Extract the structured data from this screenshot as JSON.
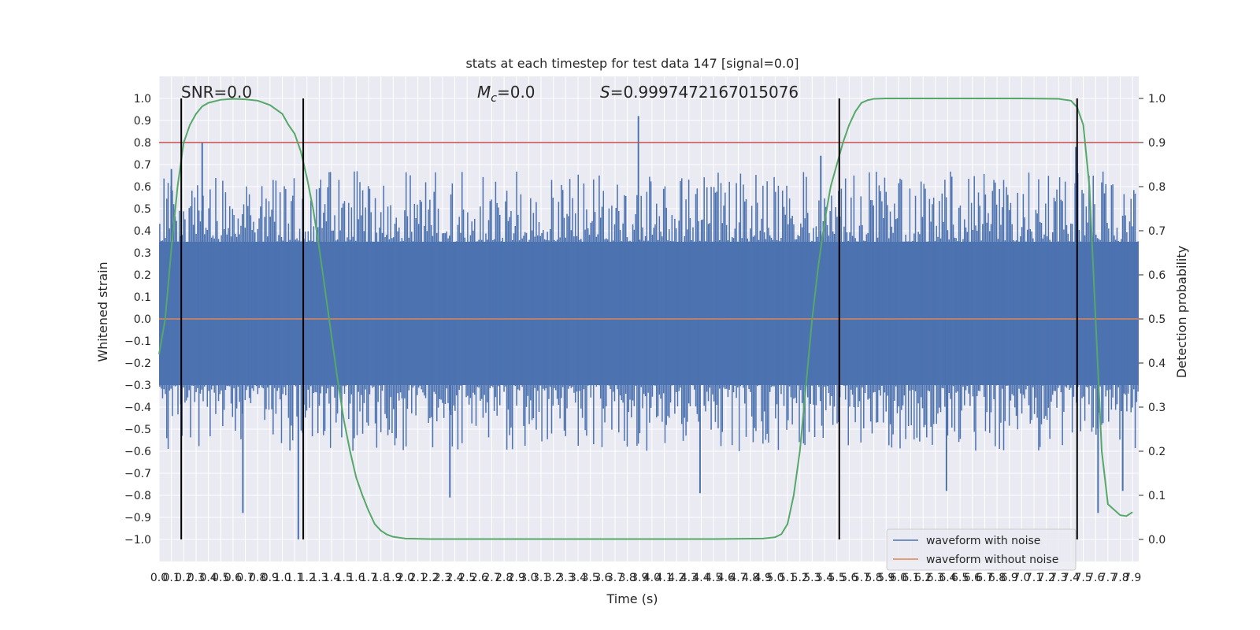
{
  "chart_data": {
    "type": "line",
    "title": "stats at each timestep for test data 147 [signal=0.0]",
    "xlabel": "Time (s)",
    "ylabel": "Whitened strain",
    "ylabel_right": "Detection probability",
    "xlim": [
      0.0,
      7.95
    ],
    "ylim": [
      -1.1,
      1.1
    ],
    "ylim_right": [
      -0.05,
      1.05
    ],
    "grid": true,
    "legend_position": "lower-right",
    "x_ticks": [
      "0.0",
      "0.1",
      "0.2",
      "0.3",
      "0.4",
      "0.5",
      "0.6",
      "0.7",
      "0.8",
      "0.9",
      "1.0",
      "1.1",
      "1.2",
      "1.3",
      "1.4",
      "1.5",
      "1.6",
      "1.7",
      "1.8",
      "1.9",
      "2.0",
      "2.1",
      "2.2",
      "2.3",
      "2.4",
      "2.5",
      "2.6",
      "2.7",
      "2.8",
      "2.9",
      "3.0",
      "3.1",
      "3.2",
      "3.3",
      "3.4",
      "3.5",
      "3.6",
      "3.7",
      "3.8",
      "3.9",
      "4.0",
      "4.1",
      "4.2",
      "4.3",
      "4.4",
      "4.5",
      "4.6",
      "4.7",
      "4.8",
      "4.9",
      "5.0",
      "5.1",
      "5.2",
      "5.3",
      "5.4",
      "5.5",
      "5.6",
      "5.7",
      "5.8",
      "5.9",
      "6.0",
      "6.1",
      "6.2",
      "6.3",
      "6.4",
      "6.5",
      "6.6",
      "6.7",
      "6.8",
      "6.9",
      "7.0",
      "7.1",
      "7.2",
      "7.3",
      "7.4",
      "7.5",
      "7.6",
      "7.7",
      "7.8",
      "7.9"
    ],
    "y_ticks": [
      "1.0",
      "0.9",
      "0.8",
      "0.7",
      "0.6",
      "0.5",
      "0.4",
      "0.3",
      "0.2",
      "0.1",
      "0.0",
      "−0.1",
      "−0.2",
      "−0.3",
      "−0.4",
      "−0.5",
      "−0.6",
      "−0.7",
      "−0.8",
      "−0.9",
      "−1.0"
    ],
    "y_ticks_right": [
      "1.0",
      "0.9",
      "0.8",
      "0.7",
      "0.6",
      "0.5",
      "0.4",
      "0.3",
      "0.2",
      "0.1",
      "0.0"
    ],
    "annotations": {
      "snr": "SNR=0.0",
      "mc_symbol": "M",
      "mc_sub": "c",
      "mc_value": "=0.0",
      "s_symbol": "S",
      "s_value": "=0.9997472167015076"
    },
    "threshold_right": 0.9,
    "vertical_markers_x": [
      0.18,
      1.17,
      5.52,
      7.45
    ],
    "noise_band": {
      "typical_upper": 0.35,
      "typical_lower": -0.3,
      "peaks": [
        {
          "x": 0.35,
          "y": 0.8
        },
        {
          "x": 0.1,
          "y": 0.68
        },
        {
          "x": 3.89,
          "y": 0.92
        },
        {
          "x": 5.37,
          "y": 0.74
        },
        {
          "x": 7.44,
          "y": 0.78
        },
        {
          "x": 0.68,
          "y": -0.88
        },
        {
          "x": 1.13,
          "y": -1.0
        },
        {
          "x": 2.36,
          "y": -0.81
        },
        {
          "x": 4.39,
          "y": -0.79
        },
        {
          "x": 6.39,
          "y": -0.78
        },
        {
          "x": 7.62,
          "y": -0.88
        },
        {
          "x": 7.82,
          "y": -0.78
        }
      ]
    },
    "series": [
      {
        "name": "waveform with noise",
        "color": "#4c72b0",
        "kind": "noise"
      },
      {
        "name": "waveform without noise",
        "color": "#dd8452",
        "x": [
          0.0,
          7.95
        ],
        "y": [
          0.0,
          0.0
        ]
      },
      {
        "color": "#55a868",
        "axis": "right",
        "x": [
          0.0,
          0.05,
          0.1,
          0.15,
          0.2,
          0.25,
          0.3,
          0.35,
          0.4,
          0.5,
          0.6,
          0.7,
          0.8,
          0.9,
          1.0,
          1.05,
          1.1,
          1.15,
          1.2,
          1.25,
          1.3,
          1.35,
          1.4,
          1.45,
          1.5,
          1.55,
          1.6,
          1.65,
          1.7,
          1.75,
          1.8,
          1.85,
          1.9,
          2.0,
          2.2,
          2.5,
          3.0,
          3.5,
          4.0,
          4.5,
          4.9,
          5.0,
          5.05,
          5.1,
          5.15,
          5.2,
          5.25,
          5.3,
          5.35,
          5.4,
          5.45,
          5.5,
          5.55,
          5.6,
          5.65,
          5.7,
          5.75,
          5.8,
          5.9,
          6.0,
          6.5,
          7.0,
          7.3,
          7.4,
          7.45,
          7.5,
          7.55,
          7.6,
          7.65,
          7.7,
          7.8,
          7.85,
          7.9
        ],
        "y": [
          0.42,
          0.5,
          0.66,
          0.8,
          0.9,
          0.94,
          0.965,
          0.982,
          0.99,
          0.997,
          0.999,
          0.998,
          0.995,
          0.985,
          0.965,
          0.94,
          0.92,
          0.88,
          0.82,
          0.75,
          0.66,
          0.56,
          0.46,
          0.36,
          0.27,
          0.2,
          0.14,
          0.1,
          0.065,
          0.035,
          0.02,
          0.011,
          0.006,
          0.002,
          0.001,
          0.001,
          0.001,
          0.001,
          0.001,
          0.001,
          0.002,
          0.005,
          0.012,
          0.035,
          0.1,
          0.2,
          0.35,
          0.5,
          0.62,
          0.72,
          0.8,
          0.85,
          0.9,
          0.94,
          0.97,
          0.99,
          0.996,
          0.999,
          1.0,
          1.0,
          1.0,
          1.0,
          0.999,
          0.995,
          0.98,
          0.94,
          0.8,
          0.5,
          0.2,
          0.08,
          0.055,
          0.053,
          0.062
        ]
      }
    ]
  }
}
